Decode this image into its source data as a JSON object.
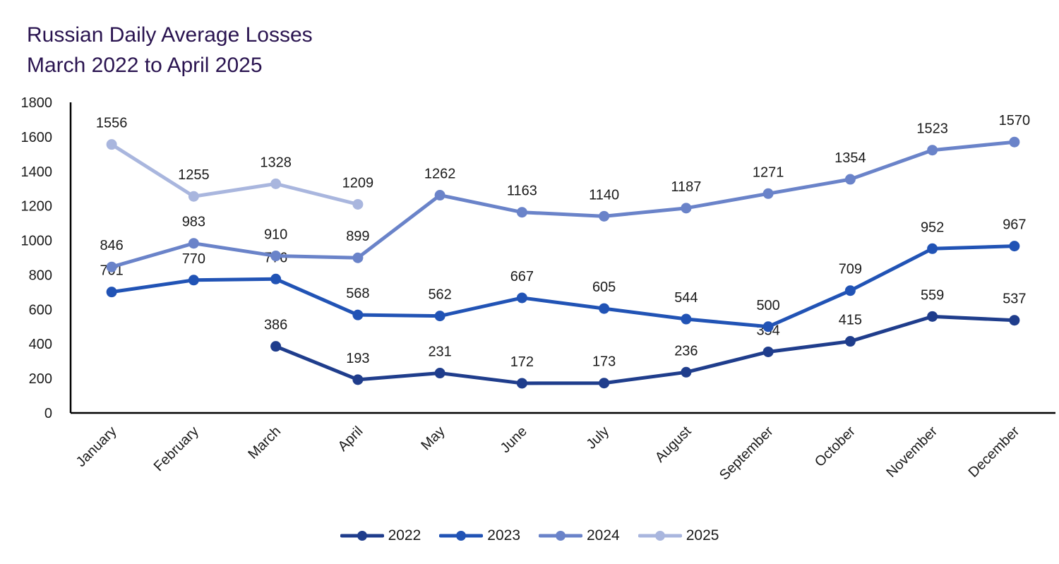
{
  "chart_data": {
    "type": "line",
    "title": "Russian Daily Average Losses",
    "subtitle": "March 2022 to April 2025",
    "categories": [
      "January",
      "February",
      "March",
      "April",
      "May",
      "June",
      "July",
      "August",
      "September",
      "October",
      "November",
      "December"
    ],
    "ylim": [
      0,
      1800
    ],
    "yticks": [
      0,
      200,
      400,
      600,
      800,
      1000,
      1200,
      1400,
      1600,
      1800
    ],
    "grid": false,
    "legend_position": "bottom",
    "series": [
      {
        "name": "2022",
        "color": "#1f3d8c",
        "values": [
          null,
          null,
          386,
          193,
          231,
          172,
          173,
          236,
          354,
          415,
          559,
          537
        ]
      },
      {
        "name": "2023",
        "color": "#2153b5",
        "values": [
          701,
          770,
          776,
          568,
          562,
          667,
          605,
          544,
          500,
          709,
          952,
          967
        ]
      },
      {
        "name": "2024",
        "color": "#6a83c9",
        "values": [
          846,
          983,
          910,
          899,
          1262,
          1163,
          1140,
          1187,
          1271,
          1354,
          1523,
          1570
        ]
      },
      {
        "name": "2025",
        "color": "#a9b6de",
        "values": [
          1556,
          1255,
          1328,
          1209,
          null,
          null,
          null,
          null,
          null,
          null,
          null,
          null
        ]
      }
    ]
  }
}
